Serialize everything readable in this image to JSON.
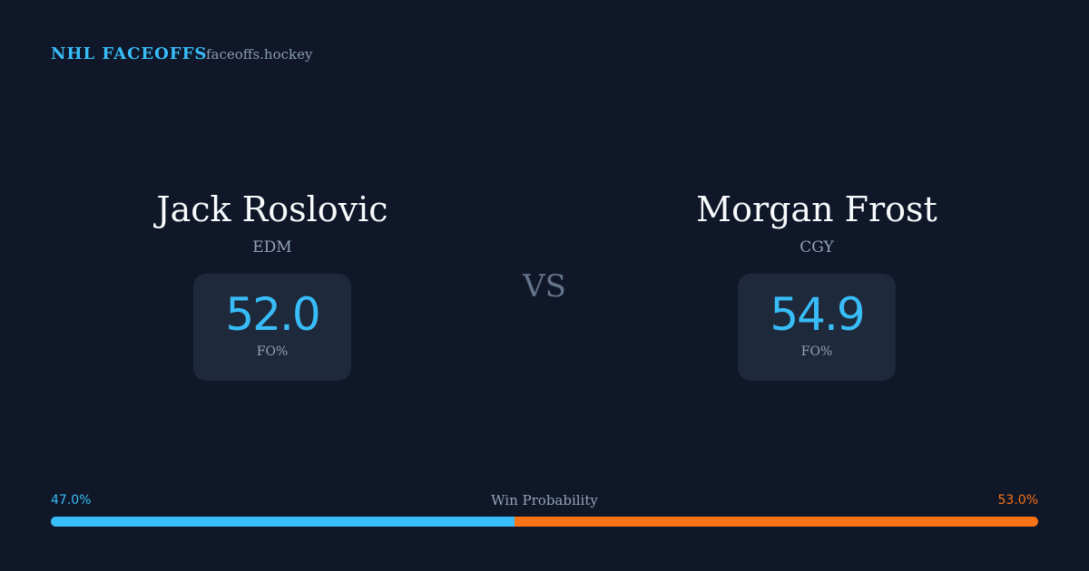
{
  "header": {
    "title": "NHL FACEOFFS",
    "site": "faceoffs.hockey"
  },
  "players": [
    {
      "name": "Jack Roslovic",
      "team": "EDM",
      "stat": "52.0",
      "stat_label": "FO%"
    },
    {
      "name": "Morgan Frost",
      "team": "CGY",
      "stat": "54.9",
      "stat_label": "FO%"
    }
  ],
  "versus": "VS",
  "win_probability": {
    "label": "Win Probability",
    "values": [
      47.0,
      53.0
    ],
    "value_labels": [
      "47.0%",
      "53.0%"
    ],
    "colors": [
      "#38bdf8",
      "#f97316"
    ]
  }
}
